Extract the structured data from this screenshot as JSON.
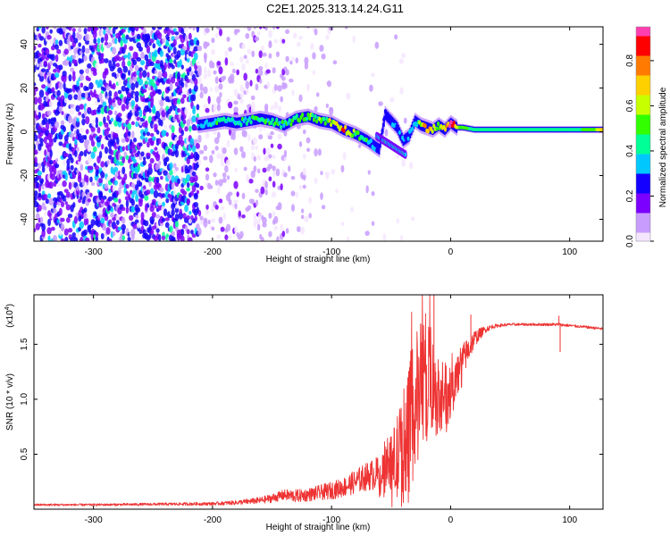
{
  "title": "C2E1.2025.313.14.24.G11",
  "chart_data": [
    {
      "type": "heatmap",
      "name": "spectrogram",
      "xlabel": "Height of straight line (km)",
      "ylabel": "Frequency (Hz)",
      "xlim": [
        -350,
        128
      ],
      "ylim": [
        -50,
        48
      ],
      "xticks": [
        -300,
        -200,
        -100,
        0,
        100
      ],
      "xtick_labels": [
        "-300",
        "-200",
        "-100",
        "0",
        "100"
      ],
      "yticks": [
        -40,
        -20,
        0,
        20,
        40
      ],
      "ytick_labels": [
        "-40",
        "-20",
        "0",
        "20",
        "40"
      ],
      "colorbar": {
        "label": "Normalized spectral amplitude",
        "range": [
          0,
          0.95
        ],
        "ticks": [
          0,
          0.2,
          0.4,
          0.6,
          0.8
        ],
        "tick_labels": [
          "0.0",
          "0.2",
          "0.4",
          "0.6",
          "0.8"
        ],
        "colors": [
          "#f4e6ff",
          "#c89cff",
          "#7b00ff",
          "#1400ff",
          "#00c8ff",
          "#00ff96",
          "#32ff00",
          "#c8ff00",
          "#ffd000",
          "#ff7a00",
          "#ff0000",
          "#ff3fb0"
        ]
      },
      "ridge": {
        "x": [
          -212,
          -200,
          -190,
          -180,
          -170,
          -160,
          -150,
          -140,
          -130,
          -120,
          -110,
          -100,
          -90,
          -80,
          -70,
          -60,
          -55,
          -50,
          -45,
          -40,
          -35,
          -30,
          -25,
          -20,
          -15,
          -10,
          -5,
          0,
          5,
          10,
          20,
          40,
          60,
          80,
          100,
          120,
          128
        ],
        "y": [
          3,
          4,
          5,
          4,
          5,
          6,
          5,
          3,
          6,
          7,
          5,
          4,
          1,
          -1,
          -4,
          -8,
          8,
          5,
          2,
          -4,
          -2,
          5,
          3,
          2,
          1,
          3,
          1,
          4,
          2,
          2,
          1,
          1,
          1,
          1,
          1,
          1,
          1
        ],
        "value": [
          0.35,
          0.4,
          0.45,
          0.4,
          0.45,
          0.5,
          0.45,
          0.45,
          0.5,
          0.55,
          0.5,
          0.6,
          0.8,
          0.5,
          0.45,
          0.3,
          0.25,
          0.3,
          0.35,
          0.3,
          0.35,
          0.4,
          0.55,
          0.8,
          0.6,
          0.5,
          0.8,
          0.95,
          0.6,
          0.5,
          0.45,
          0.45,
          0.45,
          0.45,
          0.45,
          0.5,
          0.7
        ]
      }
    },
    {
      "type": "line",
      "name": "snr",
      "xlabel": "Height of straight line (km)",
      "ylabel": "SNR (10 * v/v)",
      "scale_label": "(x10",
      "scale_exp": "4",
      "scale_close": ")",
      "xlim": [
        -350,
        128
      ],
      "ylim": [
        0,
        1.95
      ],
      "xticks": [
        -300,
        -200,
        -100,
        0,
        100
      ],
      "xtick_labels": [
        "-300",
        "-200",
        "-100",
        "0",
        "100"
      ],
      "yticks": [
        0.5,
        1.0,
        1.5
      ],
      "ytick_labels": [
        "0.5",
        "1.0",
        "1.5"
      ],
      "color": "#ee3333",
      "series": [
        {
          "name": "SNR envelope",
          "x": [
            -350,
            -300,
            -250,
            -200,
            -180,
            -160,
            -150,
            -140,
            -130,
            -120,
            -110,
            -100,
            -90,
            -80,
            -70,
            -60,
            -55,
            -50,
            -45,
            -40,
            -35,
            -30,
            -25,
            -20,
            -15,
            -10,
            -5,
            0,
            5,
            10,
            15,
            20,
            25,
            30,
            35,
            40,
            50,
            60,
            70,
            80,
            90,
            100,
            110,
            120,
            128
          ],
          "y": [
            0.04,
            0.04,
            0.045,
            0.05,
            0.06,
            0.08,
            0.1,
            0.13,
            0.12,
            0.13,
            0.15,
            0.17,
            0.2,
            0.25,
            0.3,
            0.33,
            0.36,
            0.4,
            0.45,
            0.55,
            0.7,
            0.95,
            1.15,
            1.25,
            1.2,
            1.0,
            0.95,
            1.05,
            1.2,
            1.35,
            1.45,
            1.55,
            1.6,
            1.64,
            1.66,
            1.67,
            1.68,
            1.68,
            1.68,
            1.68,
            1.68,
            1.67,
            1.66,
            1.65,
            1.64
          ],
          "noise": [
            0.01,
            0.01,
            0.012,
            0.015,
            0.02,
            0.03,
            0.04,
            0.05,
            0.06,
            0.06,
            0.07,
            0.08,
            0.09,
            0.11,
            0.13,
            0.16,
            0.2,
            0.28,
            0.4,
            0.55,
            0.6,
            0.65,
            0.6,
            0.55,
            0.5,
            0.35,
            0.3,
            0.25,
            0.2,
            0.16,
            0.12,
            0.08,
            0.05,
            0.03,
            0.02,
            0.015,
            0.012,
            0.012,
            0.012,
            0.012,
            0.015,
            0.012,
            0.012,
            0.012,
            0.012
          ]
        }
      ],
      "spikes": [
        {
          "x": -14,
          "y": 1.95
        },
        {
          "x": 17,
          "y": 1.77
        },
        {
          "x": 91,
          "y": 1.76
        },
        {
          "x": 92,
          "y": 1.43
        }
      ]
    }
  ]
}
